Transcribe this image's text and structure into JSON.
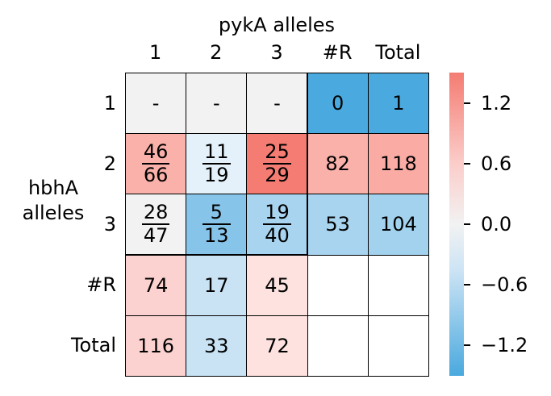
{
  "chart_data": {
    "type": "heatmap",
    "title_top": "pykA alleles",
    "title_left": "hbhA alleles",
    "columns": [
      "1",
      "2",
      "3",
      "#R",
      "Total"
    ],
    "rows": [
      "1",
      "2",
      "3",
      "#R",
      "Total"
    ],
    "cells": [
      [
        {
          "text": "-",
          "color": "#f2f2f2"
        },
        {
          "text": "-",
          "color": "#f2f2f2"
        },
        {
          "text": "-",
          "color": "#f2f2f2"
        },
        {
          "text": "0",
          "color": "#4aa9de"
        },
        {
          "text": "1",
          "color": "#4aa9de"
        }
      ],
      [
        {
          "num": "46",
          "den": "66",
          "color": "#f9b1aa"
        },
        {
          "num": "11",
          "den": "19",
          "color": "#e4f1fa"
        },
        {
          "num": "25",
          "den": "29",
          "color": "#f47c72"
        },
        {
          "text": "82",
          "color": "#f9b1aa"
        },
        {
          "text": "118",
          "color": "#f9aba4"
        }
      ],
      [
        {
          "num": "28",
          "den": "47",
          "color": "#f2f2f2"
        },
        {
          "num": "5",
          "den": "13",
          "color": "#87c4e9"
        },
        {
          "num": "19",
          "den": "40",
          "color": "#a8d4ef"
        },
        {
          "text": "53",
          "color": "#a8d4ef"
        },
        {
          "text": "104",
          "color": "#a3d2ee"
        }
      ],
      [
        {
          "text": "74",
          "color": "#fbd2cf"
        },
        {
          "text": "17",
          "color": "#c9e3f5"
        },
        {
          "text": "45",
          "color": "#fde2df"
        },
        {
          "text": "",
          "color": "#ffffff"
        },
        {
          "text": "",
          "color": "#ffffff"
        }
      ],
      [
        {
          "text": "116",
          "color": "#fbd2cf"
        },
        {
          "text": "33",
          "color": "#c9e3f5"
        },
        {
          "text": "72",
          "color": "#fde2df"
        },
        {
          "text": "",
          "color": "#ffffff"
        },
        {
          "text": "",
          "color": "#ffffff"
        }
      ]
    ],
    "colorbar": {
      "range": [
        -1.5,
        1.5
      ],
      "ticks": [
        1.2,
        0.6,
        0.0,
        -0.6,
        -1.2
      ],
      "tick_labels": [
        "1.2",
        "0.6",
        "0.0",
        "−0.6",
        "−1.2"
      ],
      "colors": {
        "high": "#f47c72",
        "mid": "#f2f2f2",
        "low": "#4aa9de"
      }
    }
  }
}
